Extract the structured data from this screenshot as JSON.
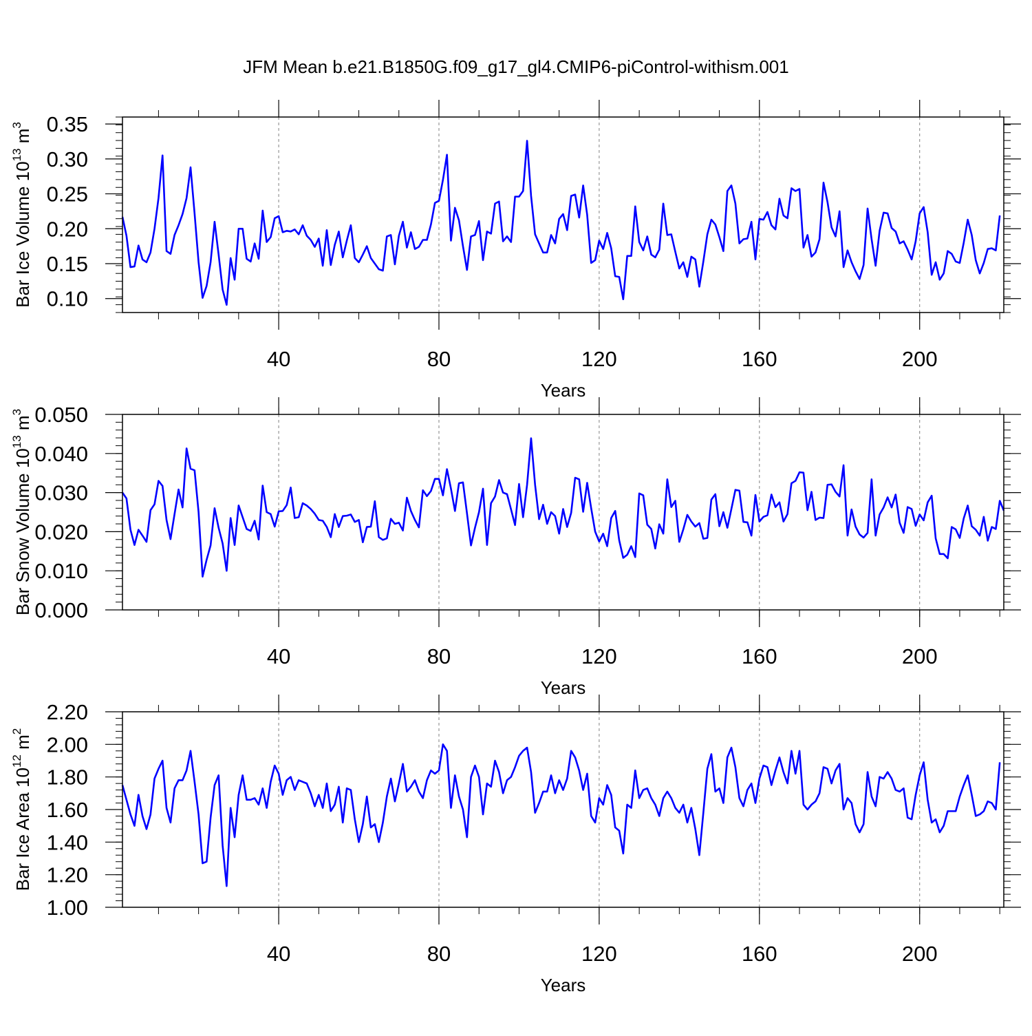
{
  "figure": {
    "title": "JFM Mean b.e21.B1850G.f09_g17_gl4.CMIP6-piControl-withism.001"
  },
  "chart_data": [
    {
      "type": "line",
      "xlabel": "Years",
      "ylabel": "Bar Ice Volume 10",
      "ylabel_exp": "13",
      "ylabel_unit": " m",
      "ylabel_unit_exp": "3",
      "xlim": [
        1,
        221
      ],
      "ylim": [
        0.08,
        0.36
      ],
      "xticks": [
        40,
        80,
        120,
        160,
        200
      ],
      "xtick_labels": [
        "40",
        "80",
        "120",
        "160",
        "200"
      ],
      "yticks": [
        0.1,
        0.15,
        0.2,
        0.25,
        0.3,
        0.35
      ],
      "ytick_labels": [
        "0.10",
        "0.15",
        "0.20",
        "0.25",
        "0.30",
        "0.35"
      ],
      "grid": "dashed vertical lines at x ticks",
      "series": [
        {
          "name": "Bar Ice Volume",
          "color": "#0000ff",
          "x_start": 1,
          "values": [
            0.217,
            0.19,
            0.145,
            0.146,
            0.176,
            0.156,
            0.152,
            0.166,
            0.2,
            0.244,
            0.305,
            0.168,
            0.164,
            0.191,
            0.205,
            0.221,
            0.244,
            0.288,
            0.222,
            0.152,
            0.101,
            0.118,
            0.152,
            0.21,
            0.163,
            0.113,
            0.091,
            0.158,
            0.127,
            0.2,
            0.2,
            0.157,
            0.153,
            0.179,
            0.157,
            0.226,
            0.181,
            0.188,
            0.215,
            0.218,
            0.195,
            0.197,
            0.196,
            0.199,
            0.192,
            0.205,
            0.19,
            0.184,
            0.174,
            0.186,
            0.147,
            0.198,
            0.148,
            0.177,
            0.196,
            0.159,
            0.183,
            0.205,
            0.158,
            0.152,
            0.163,
            0.175,
            0.158,
            0.15,
            0.142,
            0.14,
            0.189,
            0.191,
            0.149,
            0.19,
            0.21,
            0.173,
            0.195,
            0.171,
            0.174,
            0.184,
            0.184,
            0.206,
            0.237,
            0.24,
            0.27,
            0.306,
            0.183,
            0.23,
            0.212,
            0.175,
            0.141,
            0.189,
            0.191,
            0.211,
            0.155,
            0.196,
            0.193,
            0.236,
            0.239,
            0.182,
            0.189,
            0.181,
            0.246,
            0.246,
            0.254,
            0.326,
            0.247,
            0.192,
            0.179,
            0.166,
            0.166,
            0.191,
            0.179,
            0.214,
            0.221,
            0.198,
            0.247,
            0.249,
            0.216,
            0.262,
            0.22,
            0.151,
            0.155,
            0.183,
            0.171,
            0.194,
            0.172,
            0.132,
            0.131,
            0.099,
            0.161,
            0.161,
            0.232,
            0.181,
            0.169,
            0.189,
            0.163,
            0.159,
            0.17,
            0.236,
            0.191,
            0.192,
            0.167,
            0.143,
            0.152,
            0.131,
            0.16,
            0.156,
            0.117,
            0.153,
            0.192,
            0.213,
            0.206,
            0.188,
            0.168,
            0.254,
            0.262,
            0.236,
            0.179,
            0.185,
            0.186,
            0.21,
            0.156,
            0.214,
            0.213,
            0.224,
            0.205,
            0.199,
            0.243,
            0.219,
            0.215,
            0.258,
            0.254,
            0.257,
            0.173,
            0.191,
            0.16,
            0.166,
            0.185,
            0.266,
            0.238,
            0.202,
            0.189,
            0.225,
            0.145,
            0.169,
            0.152,
            0.139,
            0.128,
            0.148,
            0.229,
            0.185,
            0.147,
            0.197,
            0.223,
            0.222,
            0.201,
            0.196,
            0.179,
            0.182,
            0.17,
            0.156,
            0.182,
            0.222,
            0.231,
            0.195,
            0.134,
            0.152,
            0.127,
            0.136,
            0.168,
            0.164,
            0.153,
            0.151,
            0.18,
            0.213,
            0.191,
            0.155,
            0.136,
            0.151,
            0.171,
            0.172,
            0.169,
            0.219
          ]
        }
      ]
    },
    {
      "type": "line",
      "xlabel": "Years",
      "ylabel": "Bar Snow Volume 10",
      "ylabel_exp": "13",
      "ylabel_unit": " m",
      "ylabel_unit_exp": "3",
      "xlim": [
        1,
        221
      ],
      "ylim": [
        0.0,
        0.05
      ],
      "xticks": [
        40,
        80,
        120,
        160,
        200
      ],
      "xtick_labels": [
        "40",
        "80",
        "120",
        "160",
        "200"
      ],
      "yticks": [
        0.0,
        0.01,
        0.02,
        0.03,
        0.04,
        0.05
      ],
      "ytick_labels": [
        "0.000",
        "0.010",
        "0.020",
        "0.030",
        "0.040",
        "0.050"
      ],
      "grid": "dashed vertical lines at x ticks",
      "series": [
        {
          "name": "Bar Snow Volume",
          "color": "#0000ff",
          "x_start": 1,
          "values": [
            0.03,
            0.0285,
            0.0205,
            0.0166,
            0.0205,
            0.019,
            0.0174,
            0.0255,
            0.027,
            0.033,
            0.0317,
            0.023,
            0.0181,
            0.0245,
            0.0308,
            0.0262,
            0.0413,
            0.0361,
            0.0357,
            0.025,
            0.0085,
            0.0128,
            0.0165,
            0.026,
            0.021,
            0.017,
            0.01,
            0.0235,
            0.0166,
            0.0267,
            0.0237,
            0.0207,
            0.0202,
            0.0228,
            0.018,
            0.0318,
            0.025,
            0.0245,
            0.0213,
            0.0252,
            0.0253,
            0.0268,
            0.0313,
            0.0235,
            0.0237,
            0.0273,
            0.0267,
            0.0258,
            0.0246,
            0.023,
            0.0228,
            0.0212,
            0.0186,
            0.0245,
            0.0212,
            0.024,
            0.0241,
            0.0244,
            0.0225,
            0.023,
            0.0173,
            0.0212,
            0.0213,
            0.0278,
            0.0186,
            0.0179,
            0.0183,
            0.0233,
            0.022,
            0.0223,
            0.0203,
            0.0287,
            0.0253,
            0.023,
            0.0211,
            0.0306,
            0.0291,
            0.0304,
            0.0335,
            0.0335,
            0.0293,
            0.036,
            0.031,
            0.0253,
            0.0324,
            0.0326,
            0.0247,
            0.0165,
            0.021,
            0.025,
            0.031,
            0.0166,
            0.0273,
            0.029,
            0.0332,
            0.03,
            0.0296,
            0.0257,
            0.0217,
            0.0322,
            0.0237,
            0.032,
            0.0439,
            0.032,
            0.0232,
            0.0269,
            0.022,
            0.025,
            0.024,
            0.0195,
            0.0258,
            0.0212,
            0.0248,
            0.0338,
            0.0334,
            0.0251,
            0.0325,
            0.026,
            0.02,
            0.0175,
            0.0195,
            0.0163,
            0.0235,
            0.0253,
            0.0178,
            0.0133,
            0.0141,
            0.0163,
            0.0135,
            0.0298,
            0.0293,
            0.0218,
            0.0207,
            0.0157,
            0.0219,
            0.0195,
            0.0334,
            0.0263,
            0.0279,
            0.0174,
            0.0206,
            0.0243,
            0.0226,
            0.0213,
            0.0222,
            0.0182,
            0.0184,
            0.0282,
            0.0296,
            0.0214,
            0.025,
            0.021,
            0.0258,
            0.0307,
            0.0305,
            0.0225,
            0.0224,
            0.019,
            0.0294,
            0.0226,
            0.0238,
            0.0242,
            0.0295,
            0.0263,
            0.0275,
            0.0226,
            0.0245,
            0.0324,
            0.033,
            0.0352,
            0.0351,
            0.0255,
            0.0302,
            0.023,
            0.0236,
            0.0235,
            0.032,
            0.0321,
            0.0302,
            0.029,
            0.037,
            0.019,
            0.0257,
            0.0213,
            0.0193,
            0.0185,
            0.0197,
            0.0334,
            0.019,
            0.0244,
            0.0262,
            0.0288,
            0.0262,
            0.0295,
            0.0223,
            0.0197,
            0.0263,
            0.0258,
            0.0215,
            0.0244,
            0.0229,
            0.0275,
            0.0292,
            0.0183,
            0.0143,
            0.0143,
            0.0132,
            0.0212,
            0.0206,
            0.0184,
            0.0234,
            0.0267,
            0.0214,
            0.0205,
            0.019,
            0.0238,
            0.0177,
            0.0212,
            0.0207,
            0.0279,
            0.0254
          ]
        }
      ]
    },
    {
      "type": "line",
      "xlabel": "Years",
      "ylabel": "Bar Ice Area 10",
      "ylabel_exp": "12",
      "ylabel_unit": " m",
      "ylabel_unit_exp": "2",
      "xlim": [
        1,
        221
      ],
      "ylim": [
        1.0,
        2.2
      ],
      "xticks": [
        40,
        80,
        120,
        160,
        200
      ],
      "xtick_labels": [
        "40",
        "80",
        "120",
        "160",
        "200"
      ],
      "yticks": [
        1.0,
        1.2,
        1.4,
        1.6,
        1.8,
        2.0,
        2.2
      ],
      "ytick_labels": [
        "1.00",
        "1.20",
        "1.40",
        "1.60",
        "1.80",
        "2.00",
        "2.20"
      ],
      "grid": "dashed vertical lines at x ticks",
      "series": [
        {
          "name": "Bar Ice Area",
          "color": "#0000ff",
          "x_start": 1,
          "values": [
            1.75,
            1.66,
            1.57,
            1.5,
            1.69,
            1.56,
            1.48,
            1.57,
            1.79,
            1.85,
            1.9,
            1.61,
            1.52,
            1.73,
            1.78,
            1.78,
            1.84,
            1.96,
            1.77,
            1.57,
            1.27,
            1.28,
            1.55,
            1.75,
            1.81,
            1.38,
            1.13,
            1.61,
            1.43,
            1.69,
            1.81,
            1.66,
            1.66,
            1.67,
            1.63,
            1.73,
            1.61,
            1.77,
            1.87,
            1.82,
            1.69,
            1.78,
            1.8,
            1.72,
            1.78,
            1.77,
            1.76,
            1.7,
            1.62,
            1.69,
            1.61,
            1.76,
            1.59,
            1.63,
            1.74,
            1.52,
            1.73,
            1.72,
            1.54,
            1.4,
            1.51,
            1.68,
            1.49,
            1.51,
            1.4,
            1.52,
            1.68,
            1.79,
            1.65,
            1.76,
            1.88,
            1.71,
            1.74,
            1.78,
            1.71,
            1.67,
            1.78,
            1.84,
            1.82,
            1.84,
            2.0,
            1.96,
            1.61,
            1.81,
            1.68,
            1.6,
            1.43,
            1.8,
            1.87,
            1.8,
            1.57,
            1.76,
            1.74,
            1.9,
            1.83,
            1.7,
            1.78,
            1.8,
            1.86,
            1.93,
            1.96,
            1.98,
            1.83,
            1.58,
            1.64,
            1.71,
            1.71,
            1.81,
            1.7,
            1.78,
            1.72,
            1.79,
            1.96,
            1.92,
            1.84,
            1.72,
            1.82,
            1.56,
            1.52,
            1.67,
            1.63,
            1.75,
            1.69,
            1.49,
            1.47,
            1.33,
            1.63,
            1.61,
            1.84,
            1.67,
            1.72,
            1.73,
            1.67,
            1.63,
            1.56,
            1.67,
            1.71,
            1.67,
            1.61,
            1.58,
            1.63,
            1.52,
            1.61,
            1.48,
            1.32,
            1.58,
            1.85,
            1.94,
            1.71,
            1.73,
            1.64,
            1.92,
            1.98,
            1.86,
            1.67,
            1.62,
            1.72,
            1.76,
            1.64,
            1.79,
            1.87,
            1.86,
            1.75,
            1.84,
            1.92,
            1.83,
            1.76,
            1.96,
            1.82,
            1.96,
            1.63,
            1.6,
            1.63,
            1.65,
            1.7,
            1.86,
            1.85,
            1.76,
            1.84,
            1.88,
            1.6,
            1.67,
            1.64,
            1.51,
            1.46,
            1.51,
            1.83,
            1.68,
            1.62,
            1.8,
            1.79,
            1.83,
            1.79,
            1.72,
            1.71,
            1.73,
            1.55,
            1.54,
            1.69,
            1.81,
            1.89,
            1.66,
            1.52,
            1.54,
            1.46,
            1.5,
            1.59,
            1.59,
            1.59,
            1.68,
            1.75,
            1.81,
            1.69,
            1.56,
            1.57,
            1.59,
            1.65,
            1.64,
            1.6,
            1.89
          ]
        }
      ]
    }
  ]
}
